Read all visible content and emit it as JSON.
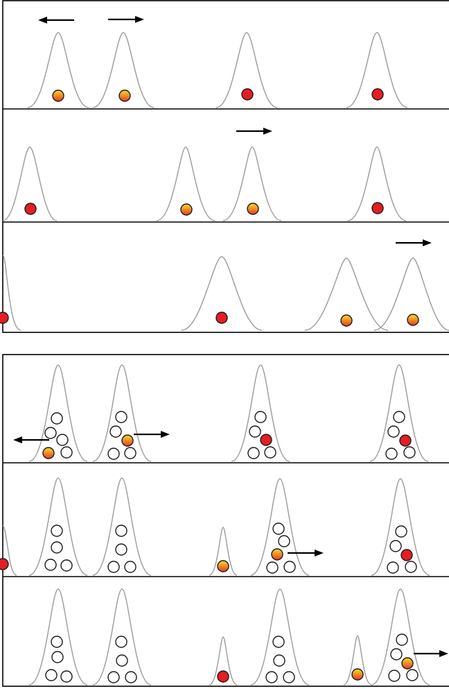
{
  "colors": {
    "red_particle": "#e41e24",
    "gradient_top": "#f6de2b",
    "gradient_bottom": "#e63a22",
    "peak_stroke": "#9a9a9a",
    "frame": "#000000"
  },
  "figure": {
    "groups": [
      {
        "name": "top-group",
        "description_hidden": true,
        "rows": 3
      },
      {
        "name": "bottom-group",
        "rows": 3
      }
    ]
  }
}
